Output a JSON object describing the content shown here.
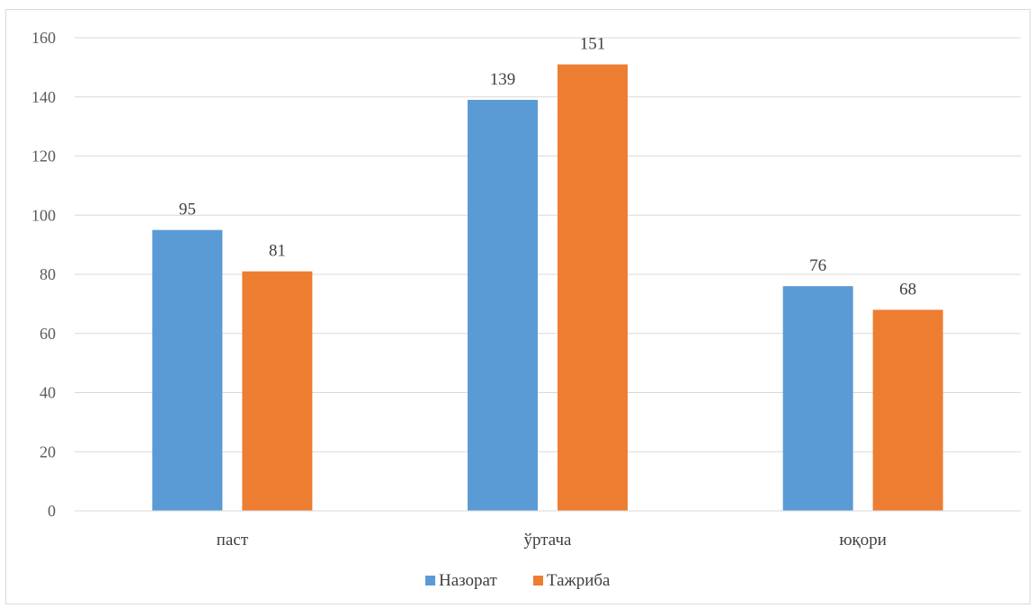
{
  "chart_data": {
    "type": "bar",
    "categories": [
      "паст",
      "ўртача",
      "юқори"
    ],
    "series": [
      {
        "name": "Назорат",
        "values": [
          95,
          139,
          76
        ],
        "color": "#5b9bd5"
      },
      {
        "name": "Тажриба",
        "values": [
          81,
          151,
          68
        ],
        "color": "#ed7d31"
      }
    ],
    "title": "",
    "xlabel": "",
    "ylabel": "",
    "ylim": [
      0,
      160
    ],
    "yticks": [
      0,
      20,
      40,
      60,
      80,
      100,
      120,
      140,
      160
    ],
    "grid": true,
    "legend_position": "bottom",
    "data_labels": true
  }
}
